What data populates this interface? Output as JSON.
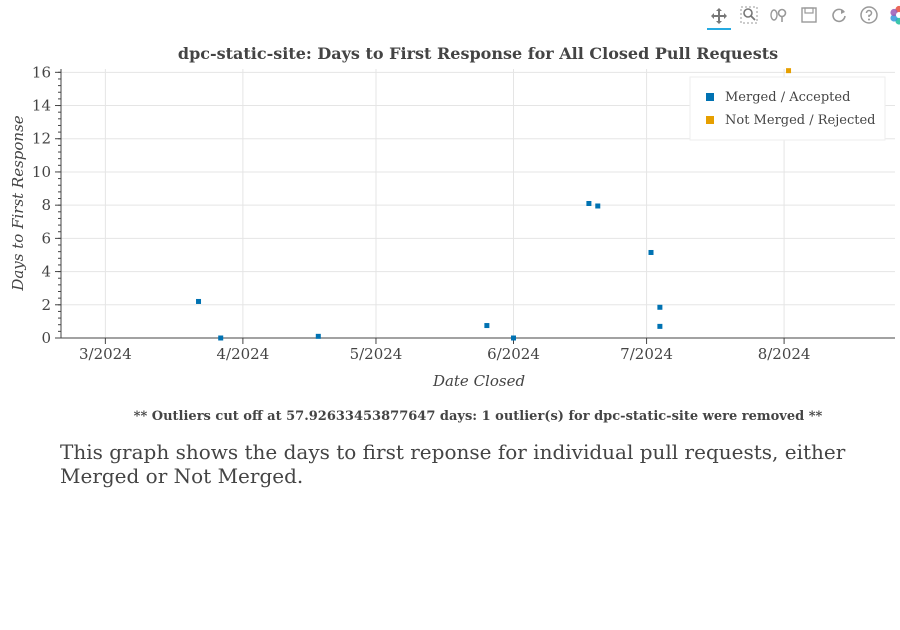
{
  "toolbar": {
    "tools": [
      {
        "name": "pan-tool",
        "icon": "move-arrows-icon",
        "active": true
      },
      {
        "name": "box-zoom-tool",
        "icon": "box-zoom-icon",
        "active": false
      },
      {
        "name": "wheel-zoom-tool",
        "icon": "wheel-zoom-icon",
        "active": false
      },
      {
        "name": "save-tool",
        "icon": "save-icon",
        "active": false
      },
      {
        "name": "reset-tool",
        "icon": "reset-icon",
        "active": false
      },
      {
        "name": "help-tool",
        "icon": "help-icon",
        "active": false
      },
      {
        "name": "bokeh-logo",
        "icon": "bokeh-logo-icon",
        "active": false
      }
    ]
  },
  "chart_data": {
    "type": "scatter",
    "title": "dpc-static-site: Days to First Response for All Closed Pull Requests",
    "xlabel": "Date Closed",
    "ylabel": "Days to First Response",
    "x_range": [
      "2024-02-20",
      "2024-08-26"
    ],
    "ylim": [
      0,
      16.2
    ],
    "x_ticks": [
      {
        "date": "2024-03-01",
        "label": "3/2024"
      },
      {
        "date": "2024-04-01",
        "label": "4/2024"
      },
      {
        "date": "2024-05-01",
        "label": "5/2024"
      },
      {
        "date": "2024-06-01",
        "label": "6/2024"
      },
      {
        "date": "2024-07-01",
        "label": "7/2024"
      },
      {
        "date": "2024-08-01",
        "label": "8/2024"
      }
    ],
    "y_ticks": [
      0,
      2,
      4,
      6,
      8,
      10,
      12,
      14,
      16
    ],
    "grid": true,
    "legend_position": "top-right",
    "series": [
      {
        "name": "Merged / Accepted",
        "color": "#0072b2",
        "points": [
          {
            "x": "2024-03-22",
            "y": 2.2
          },
          {
            "x": "2024-03-27",
            "y": 0.0
          },
          {
            "x": "2024-04-18",
            "y": 0.1
          },
          {
            "x": "2024-05-26",
            "y": 0.75
          },
          {
            "x": "2024-06-01",
            "y": 0.0
          },
          {
            "x": "2024-06-18",
            "y": 8.1
          },
          {
            "x": "2024-06-20",
            "y": 7.95
          },
          {
            "x": "2024-07-02",
            "y": 5.15
          },
          {
            "x": "2024-07-04",
            "y": 1.85
          },
          {
            "x": "2024-07-04",
            "y": 0.7
          }
        ]
      },
      {
        "name": "Not Merged / Rejected",
        "color": "#e69f00",
        "points": [
          {
            "x": "2024-08-02",
            "y": 16.1
          }
        ]
      }
    ]
  },
  "footnote": "** Outliers cut off at 57.92633453877647 days: 1 outlier(s) for dpc-static-site were removed **",
  "description": "This graph shows the days to first reponse for individual pull requests, either Merged or Not Merged."
}
